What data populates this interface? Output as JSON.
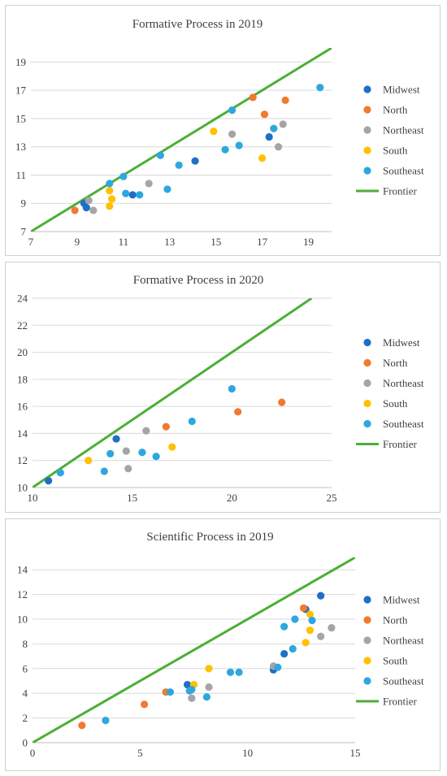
{
  "colors": {
    "Midwest": "#1f6fc5",
    "North": "#f07a30",
    "Northeast": "#a5a5a5",
    "South": "#ffc000",
    "Southeast": "#2ea7df",
    "Frontier": "#4caf36",
    "grid": "#d9d9d9",
    "axis": "#bfbfbf"
  },
  "chart_data": [
    {
      "type": "scatter",
      "title": "Formative Process in 2019",
      "xlim": [
        7,
        20
      ],
      "ylim": [
        7,
        20
      ],
      "xticks": [
        7,
        9,
        11,
        13,
        15,
        17,
        19
      ],
      "yticks": [
        7,
        9,
        11,
        13,
        15,
        17,
        19
      ],
      "grid": "horizontal",
      "legend_position": "right",
      "series": [
        {
          "name": "Midwest",
          "points": [
            [
              9.3,
              9.0
            ],
            [
              9.4,
              8.7
            ],
            [
              11.4,
              9.6
            ],
            [
              14.1,
              12.0
            ],
            [
              17.3,
              13.7
            ]
          ]
        },
        {
          "name": "North",
          "points": [
            [
              8.9,
              8.5
            ],
            [
              16.6,
              16.5
            ],
            [
              17.1,
              15.3
            ],
            [
              18.0,
              16.3
            ]
          ]
        },
        {
          "name": "Northeast",
          "points": [
            [
              9.5,
              9.2
            ],
            [
              9.7,
              8.5
            ],
            [
              12.1,
              10.4
            ],
            [
              15.7,
              13.9
            ],
            [
              17.7,
              13.0
            ],
            [
              17.9,
              14.6
            ]
          ]
        },
        {
          "name": "South",
          "points": [
            [
              10.4,
              9.9
            ],
            [
              10.4,
              8.8
            ],
            [
              10.5,
              9.3
            ],
            [
              14.9,
              14.1
            ],
            [
              17.0,
              12.2
            ]
          ]
        },
        {
          "name": "Southeast",
          "points": [
            [
              10.4,
              10.4
            ],
            [
              11.0,
              10.9
            ],
            [
              11.1,
              9.7
            ],
            [
              11.7,
              9.6
            ],
            [
              12.6,
              12.4
            ],
            [
              12.9,
              10.0
            ],
            [
              13.4,
              11.7
            ],
            [
              15.4,
              12.8
            ],
            [
              15.7,
              15.6
            ],
            [
              16.0,
              13.1
            ],
            [
              17.5,
              14.3
            ],
            [
              19.5,
              17.2
            ]
          ]
        }
      ],
      "frontier": {
        "name": "Frontier",
        "from": [
          7,
          7
        ],
        "to": [
          20,
          20
        ]
      }
    },
    {
      "type": "scatter",
      "title": "Formative Process in 2020",
      "xlim": [
        10,
        25
      ],
      "ylim": [
        10,
        24
      ],
      "xticks": [
        10,
        15,
        20,
        25
      ],
      "yticks": [
        10,
        12,
        14,
        16,
        18,
        20,
        22,
        24
      ],
      "grid": "horizontal",
      "legend_position": "right",
      "series": [
        {
          "name": "Midwest",
          "points": [
            [
              10.8,
              10.5
            ],
            [
              14.2,
              13.6
            ]
          ]
        },
        {
          "name": "North",
          "points": [
            [
              16.7,
              14.5
            ],
            [
              20.3,
              15.6
            ],
            [
              22.5,
              16.3
            ]
          ]
        },
        {
          "name": "Northeast",
          "points": [
            [
              14.7,
              12.7
            ],
            [
              14.8,
              11.4
            ],
            [
              15.7,
              14.2
            ]
          ]
        },
        {
          "name": "South",
          "points": [
            [
              12.8,
              12.0
            ],
            [
              17.0,
              13.0
            ]
          ]
        },
        {
          "name": "Southeast",
          "points": [
            [
              11.4,
              11.1
            ],
            [
              13.6,
              11.2
            ],
            [
              13.9,
              12.5
            ],
            [
              15.5,
              12.6
            ],
            [
              16.2,
              12.3
            ],
            [
              18.0,
              14.9
            ],
            [
              20.0,
              17.3
            ]
          ]
        }
      ],
      "frontier": {
        "name": "Frontier",
        "from": [
          10,
          10
        ],
        "to": [
          24,
          24
        ]
      }
    },
    {
      "type": "scatter",
      "title": "Scientific Process in 2019",
      "xlim": [
        0,
        15
      ],
      "ylim": [
        0,
        15
      ],
      "xticks": [
        0,
        5,
        10,
        15
      ],
      "yticks": [
        0,
        2,
        4,
        6,
        8,
        10,
        12,
        14
      ],
      "grid": "horizontal",
      "legend_position": "right",
      "series": [
        {
          "name": "Midwest",
          "points": [
            [
              7.2,
              4.7
            ],
            [
              11.2,
              5.9
            ],
            [
              11.7,
              7.2
            ],
            [
              12.7,
              10.8
            ],
            [
              13.4,
              11.9
            ]
          ]
        },
        {
          "name": "North",
          "points": [
            [
              2.3,
              1.4
            ],
            [
              5.2,
              3.1
            ],
            [
              6.2,
              4.1
            ],
            [
              12.6,
              10.9
            ]
          ]
        },
        {
          "name": "Northeast",
          "points": [
            [
              7.4,
              3.6
            ],
            [
              8.2,
              4.5
            ],
            [
              11.2,
              6.2
            ],
            [
              13.4,
              8.6
            ],
            [
              13.9,
              9.3
            ]
          ]
        },
        {
          "name": "South",
          "points": [
            [
              7.5,
              4.7
            ],
            [
              8.2,
              6.0
            ],
            [
              12.7,
              8.1
            ],
            [
              12.9,
              9.1
            ],
            [
              12.9,
              10.4
            ]
          ]
        },
        {
          "name": "Southeast",
          "points": [
            [
              3.4,
              1.8
            ],
            [
              6.4,
              4.1
            ],
            [
              7.3,
              4.2
            ],
            [
              7.4,
              4.3
            ],
            [
              8.1,
              3.7
            ],
            [
              9.2,
              5.7
            ],
            [
              9.6,
              5.7
            ],
            [
              11.4,
              6.1
            ],
            [
              11.7,
              9.4
            ],
            [
              12.1,
              7.6
            ],
            [
              12.2,
              10.0
            ],
            [
              13.0,
              9.9
            ]
          ]
        }
      ],
      "frontier": {
        "name": "Frontier",
        "from": [
          0,
          0
        ],
        "to": [
          15,
          15
        ]
      }
    }
  ]
}
